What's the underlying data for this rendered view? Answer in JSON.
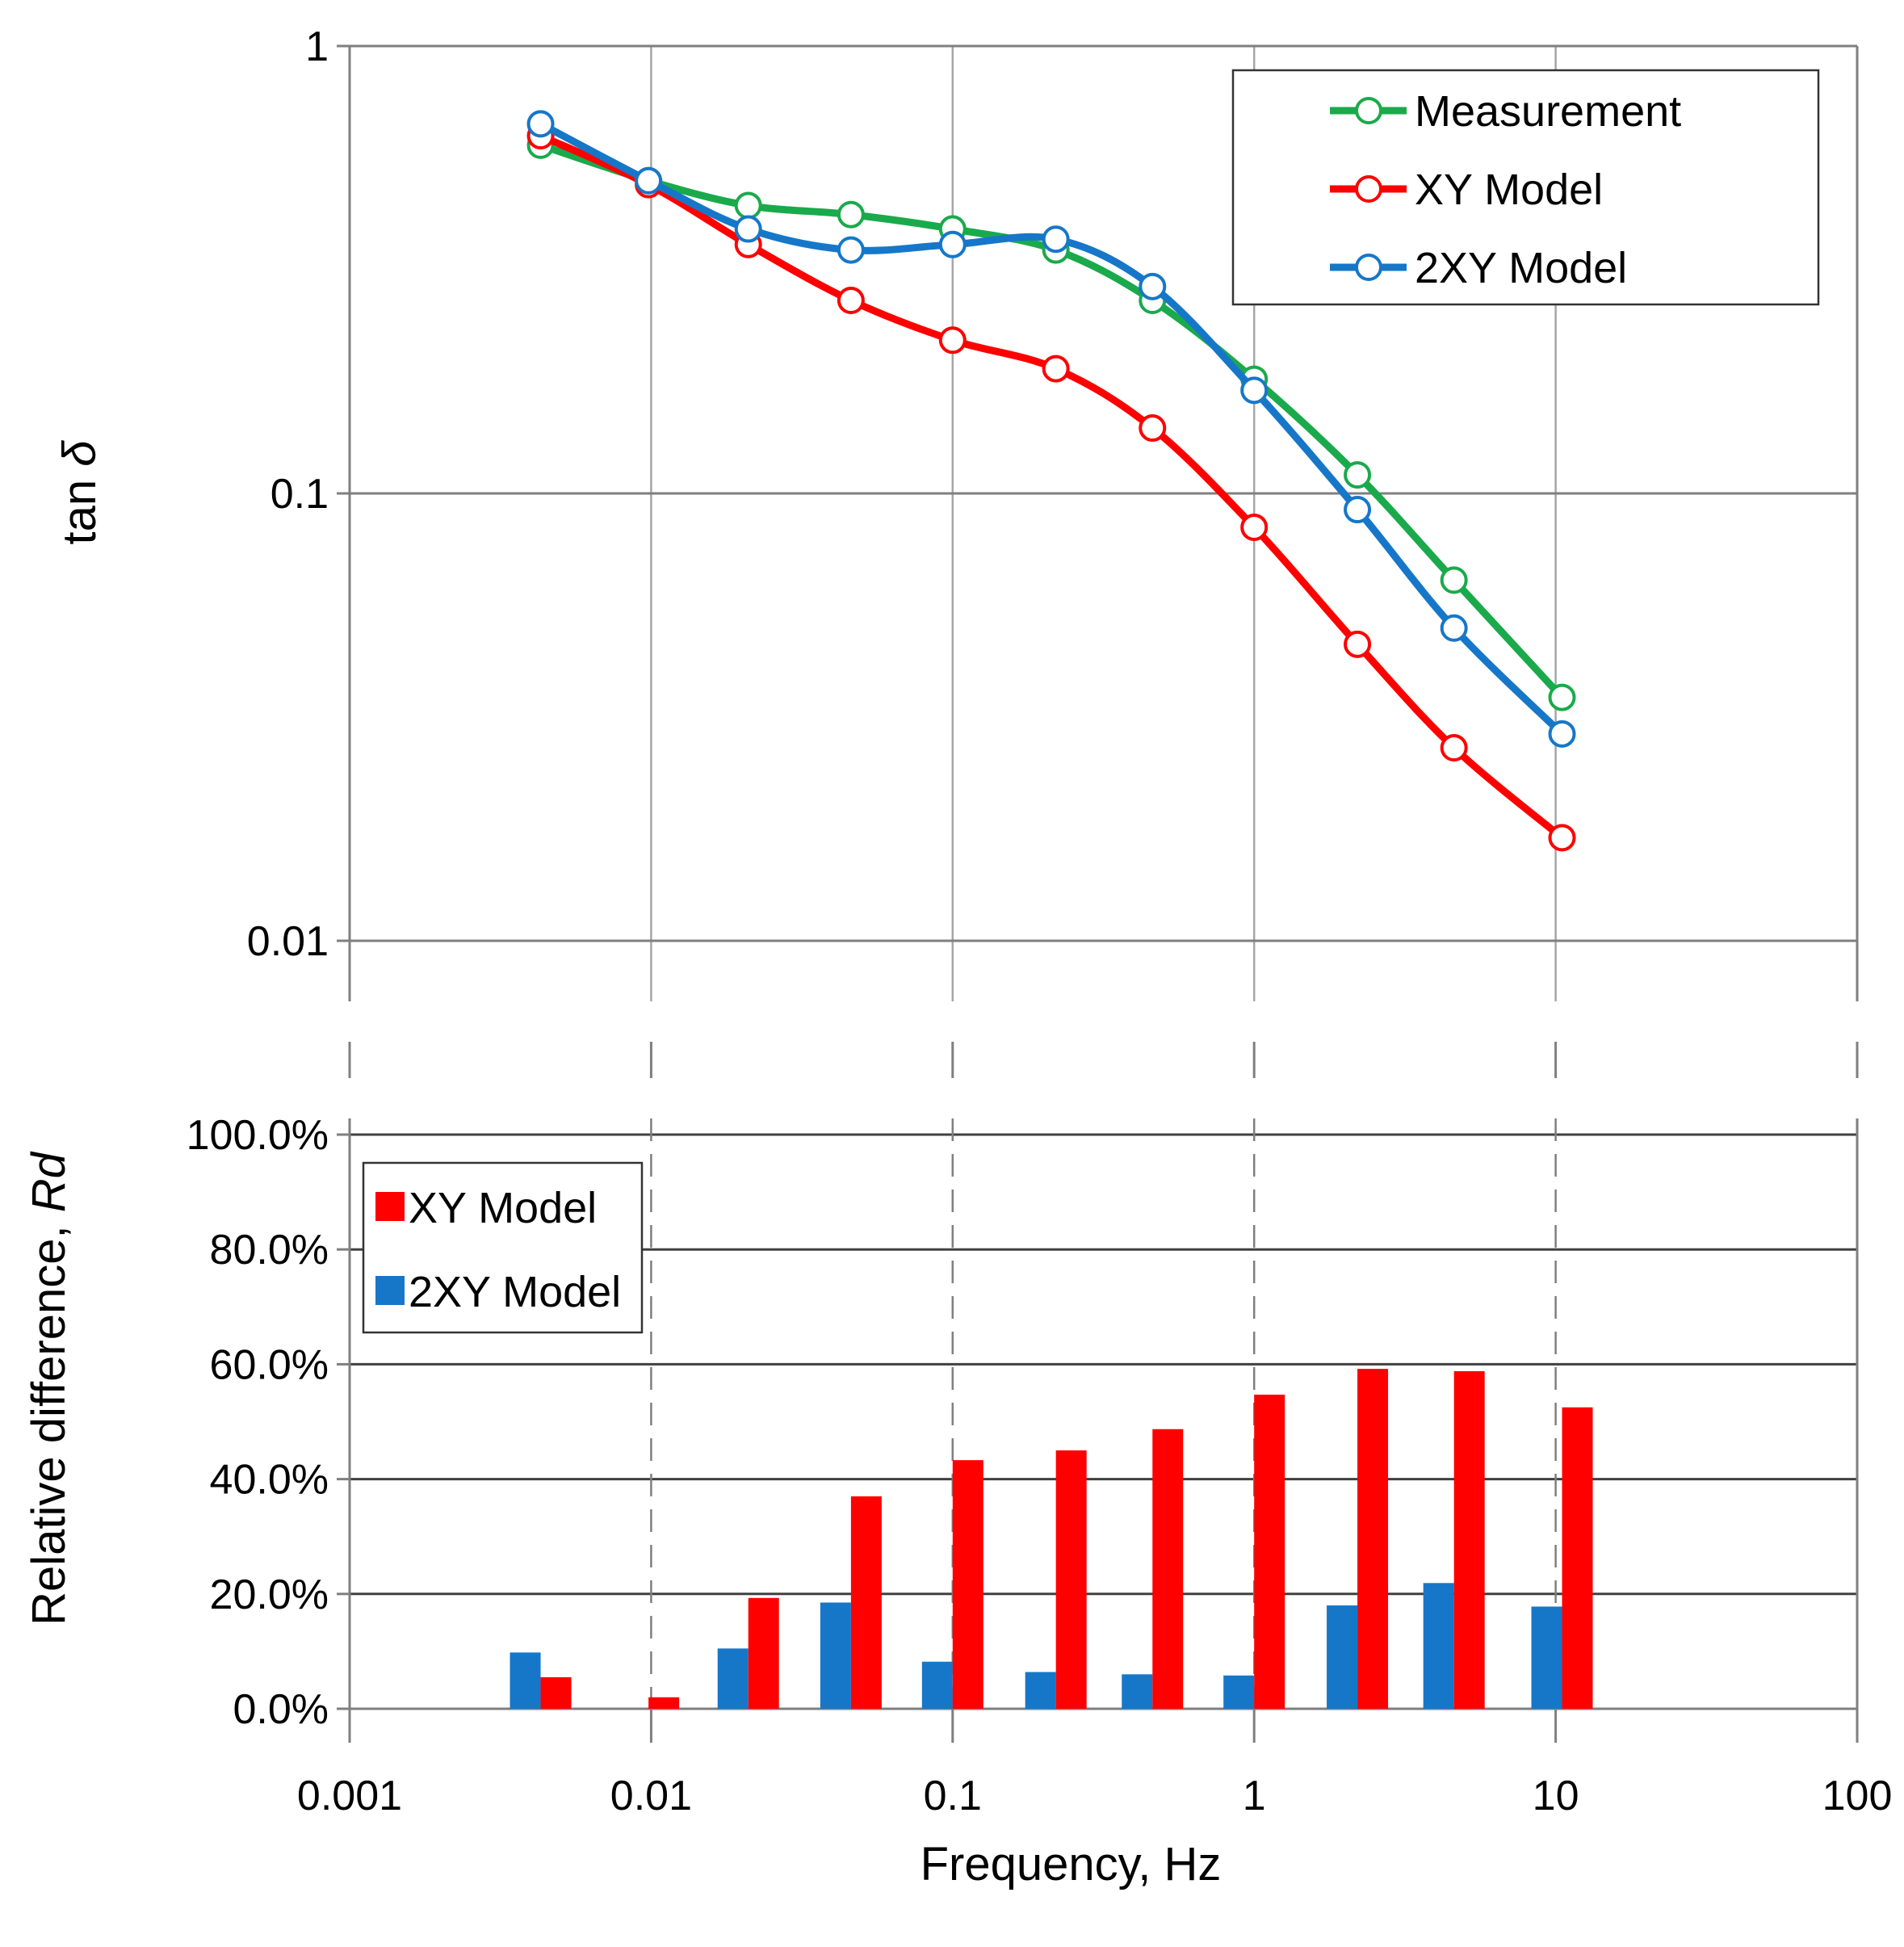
{
  "chart_data": [
    {
      "type": "line",
      "scale": "log-log",
      "ylabel_text": "tan",
      "ylabel_symbol": "δ",
      "xlim": [
        0.001,
        100
      ],
      "ylim": [
        0.01,
        1
      ],
      "ytick_labels": [
        "1",
        "0.1",
        "0.01"
      ],
      "ytick_values": [
        1,
        0.1,
        0.01
      ],
      "grid": true,
      "legend_position": "top-right",
      "x": [
        0.0043,
        0.0098,
        0.021,
        0.046,
        0.1,
        0.22,
        0.46,
        1.0,
        2.2,
        4.6,
        10.5
      ],
      "series": [
        {
          "name": "Measurement",
          "color": "#1aaa4b",
          "values": [
            0.6,
            0.5,
            0.44,
            0.42,
            0.39,
            0.35,
            0.27,
            0.18,
            0.11,
            0.064,
            0.035
          ]
        },
        {
          "name": "XY Model",
          "color": "#ff0000",
          "values": [
            0.63,
            0.49,
            0.36,
            0.27,
            0.22,
            0.19,
            0.14,
            0.084,
            0.046,
            0.027,
            0.017
          ]
        },
        {
          "name": "2XY Model",
          "color": "#1677c9",
          "values": [
            0.67,
            0.5,
            0.39,
            0.35,
            0.36,
            0.37,
            0.29,
            0.17,
            0.092,
            0.05,
            0.029
          ]
        }
      ]
    },
    {
      "type": "bar",
      "xscale": "log",
      "xlabel": "Frequency, Hz",
      "ylabel_text": "Relative difference, ",
      "ylabel_italic": "Rd",
      "xlim": [
        0.001,
        100
      ],
      "ylim": [
        0,
        100
      ],
      "ytick_labels": [
        "100.0%",
        "80.0%",
        "60.0%",
        "40.0%",
        "20.0%",
        "0.0%"
      ],
      "ytick_values": [
        100,
        80,
        60,
        40,
        20,
        0
      ],
      "xtick_labels": [
        "0.001",
        "0.01",
        "0.1",
        "1",
        "10",
        "100"
      ],
      "xtick_values": [
        0.001,
        0.01,
        0.1,
        1,
        10,
        100
      ],
      "grid": true,
      "legend_position": "top-left",
      "x": [
        0.0043,
        0.0098,
        0.021,
        0.046,
        0.1,
        0.22,
        0.46,
        1.0,
        2.2,
        4.6,
        10.5
      ],
      "series": [
        {
          "name": "XY Model",
          "color": "#ff0000",
          "values": [
            5.5,
            2,
            19.3,
            37,
            43.3,
            45,
            48.7,
            54.7,
            59.2,
            58.8,
            52.5
          ]
        },
        {
          "name": "2XY Model",
          "color": "#1677c9",
          "values": [
            9.8,
            0,
            10.5,
            18.5,
            8.2,
            6.4,
            6,
            5.8,
            18,
            21.9,
            17.8
          ]
        }
      ]
    }
  ]
}
